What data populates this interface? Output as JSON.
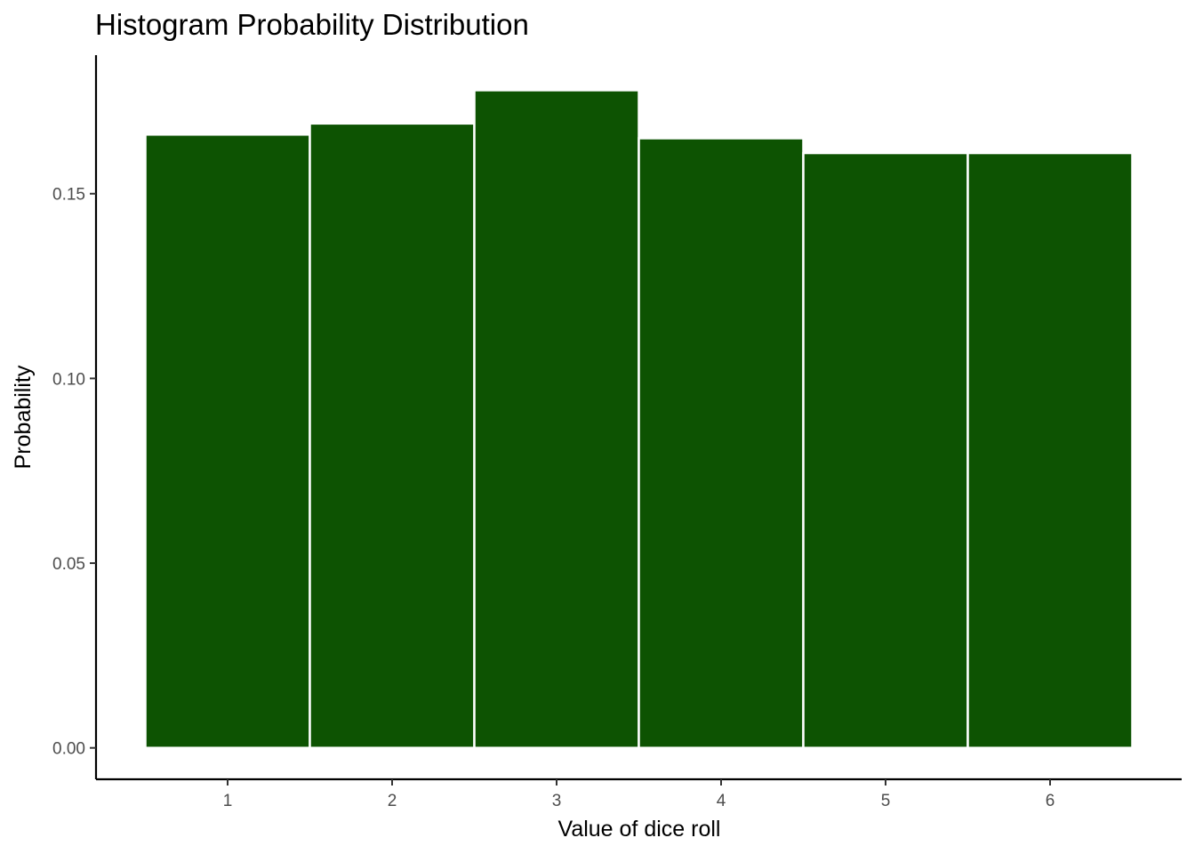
{
  "chart_data": {
    "type": "bar",
    "title": "Histogram Probability Distribution",
    "xlabel": "Value of dice roll",
    "ylabel": "Probability",
    "categories": [
      "1",
      "2",
      "3",
      "4",
      "5",
      "6"
    ],
    "values": [
      0.166,
      0.169,
      0.178,
      0.165,
      0.161,
      0.161
    ],
    "xlim": [
      0.2,
      6.8
    ],
    "ylim": [
      -0.0085,
      0.1875
    ],
    "yticks": [
      0.0,
      0.05,
      0.1,
      0.15
    ],
    "ytick_labels": [
      "0.00",
      "0.05",
      "0.10",
      "0.15"
    ],
    "xticks": [
      1,
      2,
      3,
      4,
      5,
      6
    ],
    "xtick_labels": [
      "1",
      "2",
      "3",
      "4",
      "5",
      "6"
    ],
    "bar_color": "#0d5302",
    "bar_edge_color": "#ffffff",
    "grid": false,
    "legend": "none"
  }
}
